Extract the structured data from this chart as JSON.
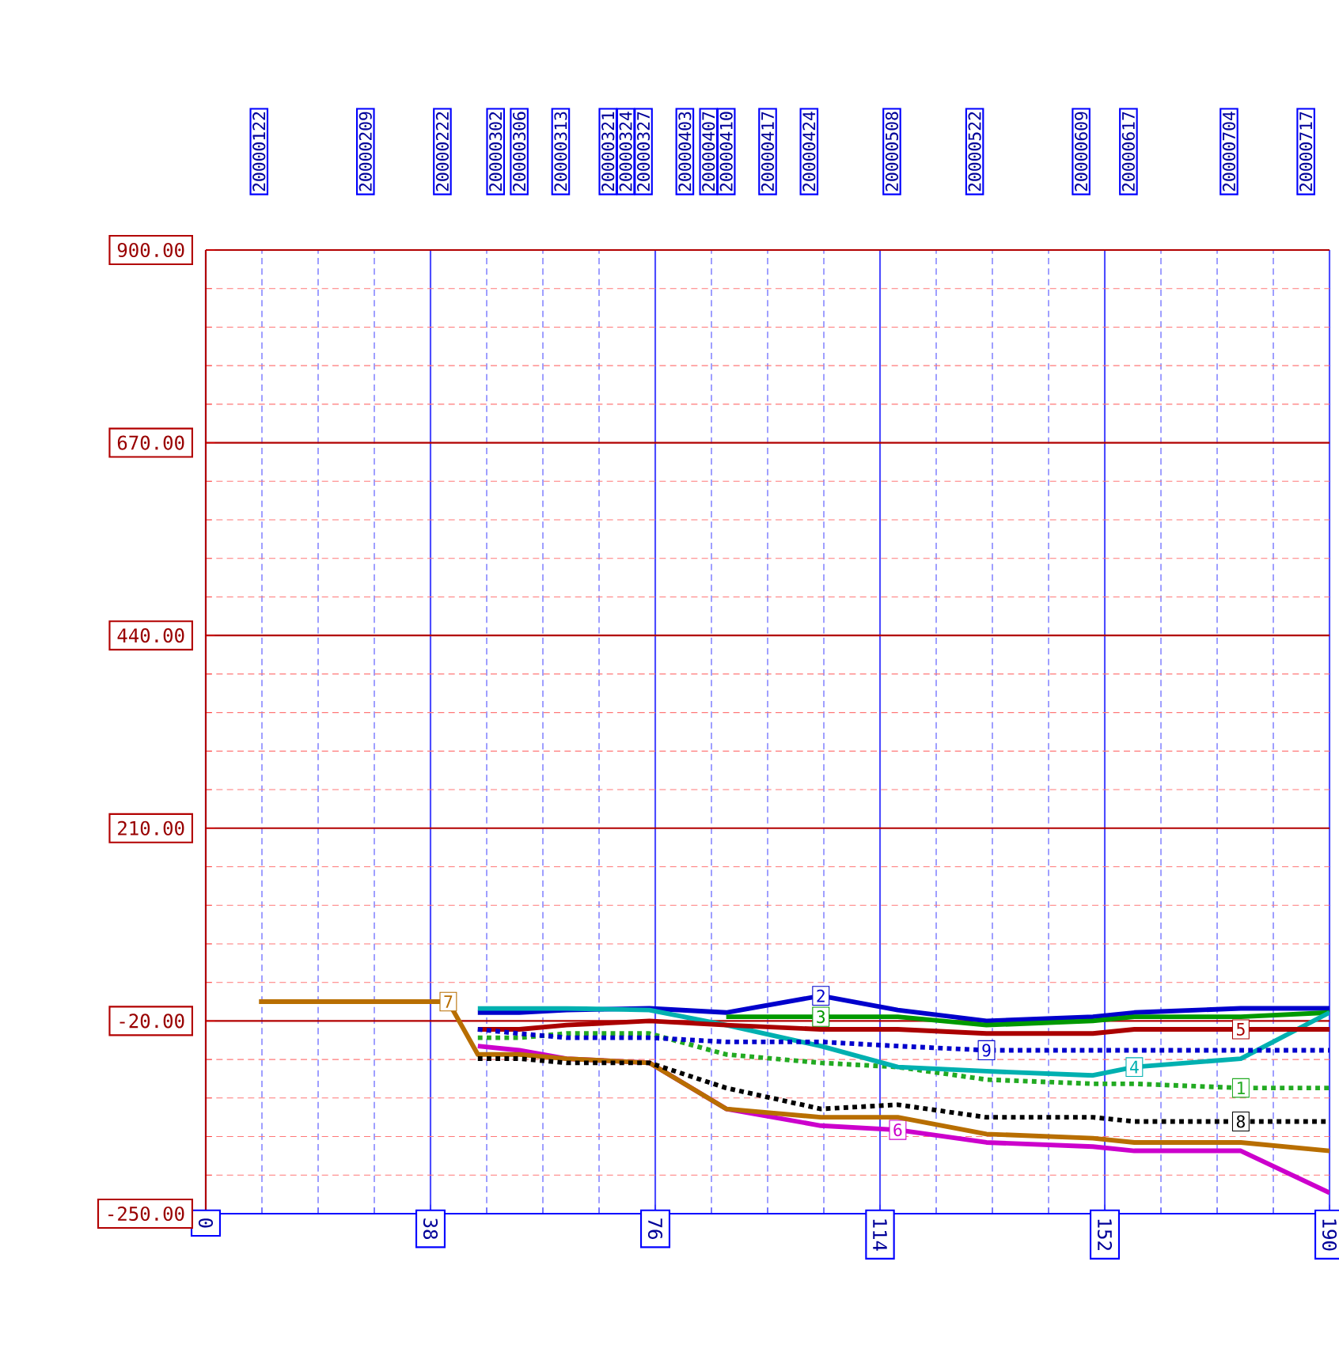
{
  "chart_data": {
    "type": "line",
    "x": [
      9,
      27,
      41,
      46,
      53,
      61,
      75,
      88,
      104,
      117,
      132,
      150,
      157,
      175,
      190
    ],
    "series": [
      {
        "name": "1",
        "color": "#22aa22",
        "line_style": "dotted",
        "values": [
          null,
          null,
          null,
          -40,
          -40,
          -35,
          -35,
          -60,
          -70,
          -75,
          -90,
          -95,
          -95,
          -100,
          -100
        ]
      },
      {
        "name": "2",
        "color": "#0000cc",
        "line_style": "solid",
        "values": [
          null,
          null,
          null,
          -10,
          -10,
          -7,
          -5,
          -10,
          10,
          -7,
          -20,
          -15,
          -10,
          -5,
          -5
        ]
      },
      {
        "name": "3",
        "color": "#009900",
        "line_style": "solid",
        "values": [
          null,
          null,
          null,
          null,
          null,
          null,
          null,
          -15,
          -15,
          -15,
          -25,
          -20,
          -15,
          -15,
          -10
        ]
      },
      {
        "name": "4",
        "color": "#00b0b0",
        "line_style": "solid",
        "values": [
          null,
          null,
          null,
          -5,
          -5,
          -5,
          -7,
          -25,
          -50,
          -75,
          -80,
          -85,
          -75,
          -65,
          -10
        ]
      },
      {
        "name": "5",
        "color": "#aa0000",
        "line_style": "solid",
        "values": [
          null,
          null,
          null,
          -30,
          -30,
          -25,
          -20,
          -25,
          -30,
          -30,
          -35,
          -35,
          -30,
          -30,
          -30
        ]
      },
      {
        "name": "6",
        "color": "#cc00cc",
        "line_style": "solid",
        "values": [
          null,
          null,
          null,
          -50,
          -55,
          -65,
          -70,
          -125,
          -145,
          -150,
          -165,
          -170,
          -175,
          -175,
          -225
        ]
      },
      {
        "name": "7",
        "color": "#b86e00",
        "line_style": "solid",
        "values": [
          3,
          3,
          3,
          -60,
          -60,
          -65,
          -70,
          -125,
          -135,
          -135,
          -155,
          -160,
          -165,
          -165,
          -175
        ]
      },
      {
        "name": "8",
        "color": "#000000",
        "line_style": "dotted",
        "values": [
          null,
          null,
          null,
          -65,
          -65,
          -70,
          -70,
          -100,
          -125,
          -120,
          -135,
          -135,
          -140,
          -140,
          -140
        ]
      },
      {
        "name": "9",
        "color": "#0000cc",
        "line_style": "dotted",
        "values": [
          null,
          null,
          null,
          -30,
          -35,
          -40,
          -40,
          -45,
          -45,
          -50,
          -55,
          -55,
          -55,
          -55,
          -55
        ]
      }
    ],
    "xlim": [
      0,
      190
    ],
    "xticks": [
      0,
      38,
      76,
      114,
      152,
      190
    ],
    "ylim": [
      -250,
      900
    ],
    "yticks": [
      {
        "value": -250,
        "label": "-250.00"
      },
      {
        "value": -204,
        "label": null
      },
      {
        "value": -158,
        "label": null
      },
      {
        "value": -112,
        "label": null
      },
      {
        "value": -66,
        "label": null
      },
      {
        "value": -20,
        "label": "-20.00"
      },
      {
        "value": 26,
        "label": null
      },
      {
        "value": 72,
        "label": null
      },
      {
        "value": 118,
        "label": null
      },
      {
        "value": 164,
        "label": null
      },
      {
        "value": 210,
        "label": "210.00"
      },
      {
        "value": 256,
        "label": null
      },
      {
        "value": 302,
        "label": null
      },
      {
        "value": 348,
        "label": null
      },
      {
        "value": 394,
        "label": null
      },
      {
        "value": 440,
        "label": "440.00"
      },
      {
        "value": 486,
        "label": null
      },
      {
        "value": 532,
        "label": null
      },
      {
        "value": 578,
        "label": null
      },
      {
        "value": 624,
        "label": null
      },
      {
        "value": 670,
        "label": "670.00"
      },
      {
        "value": 716,
        "label": null
      },
      {
        "value": 762,
        "label": null
      },
      {
        "value": 808,
        "label": null
      },
      {
        "value": 854,
        "label": null
      },
      {
        "value": 900,
        "label": "900.00"
      }
    ],
    "x2lim": [
      "2000-01-13",
      "2000-07-21"
    ],
    "x2ticks": [
      {
        "value": "2000-01-22",
        "label": "20000122"
      },
      {
        "value": "2000-02-09",
        "label": "20000209"
      },
      {
        "value": "2000-02-22",
        "label": "20000222"
      },
      {
        "value": "2000-03-02",
        "label": "20000302"
      },
      {
        "value": "2000-03-06",
        "label": "20000306"
      },
      {
        "value": "2000-03-13",
        "label": "20000313"
      },
      {
        "value": "2000-03-21",
        "label": "20000321"
      },
      {
        "value": "2000-03-24",
        "label": "20000324"
      },
      {
        "value": "2000-03-27",
        "label": "20000327"
      },
      {
        "value": "2000-04-03",
        "label": "20000403"
      },
      {
        "value": "2000-04-07",
        "label": "20000407"
      },
      {
        "value": "2000-04-10",
        "label": "20000410"
      },
      {
        "value": "2000-04-17",
        "label": "20000417"
      },
      {
        "value": "2000-04-24",
        "label": "20000424"
      },
      {
        "value": "2000-05-08",
        "label": "20000508"
      },
      {
        "value": "2000-05-22",
        "label": "20000522"
      },
      {
        "value": "2000-06-09",
        "label": "20000609"
      },
      {
        "value": "2000-06-17",
        "label": "20000617"
      },
      {
        "value": "2000-07-04",
        "label": "20000704"
      },
      {
        "value": "2000-07-17",
        "label": "20000717"
      }
    ],
    "grid": true,
    "legend": false,
    "marker": "none"
  }
}
